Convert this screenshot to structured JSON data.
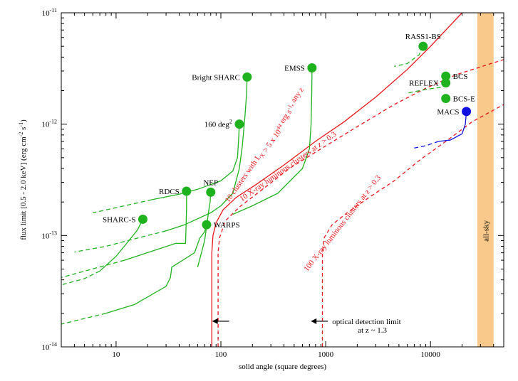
{
  "chart_data": {
    "type": "scatter",
    "xlabel": "solid angle (square degrees)",
    "ylabel": "flux limit [0.5 - 2.0 keV] (erg cm-2 s-1)",
    "ylabel_parts": {
      "pre": "flux limit [0.5 - 2.0 keV] (erg cm",
      "exp1": "-2",
      "mid": " s",
      "exp2": "-1",
      "post": ")"
    },
    "x_log": true,
    "y_log": true,
    "xlim": [
      3,
      50000
    ],
    "ylim": [
      1e-14,
      1e-11
    ],
    "x_ticks": [
      {
        "value": 10,
        "label": "10"
      },
      {
        "value": 100,
        "label": "100"
      },
      {
        "value": 1000,
        "label": "1000"
      },
      {
        "value": 10000,
        "label": "10000"
      }
    ],
    "y_ticks": [
      {
        "value": 1e-14,
        "base": "10",
        "exp": "-14"
      },
      {
        "value": 1e-13,
        "base": "10",
        "exp": "-13"
      },
      {
        "value": 1e-12,
        "base": "10",
        "exp": "-12"
      },
      {
        "value": 1e-11,
        "base": "10",
        "exp": "-11"
      }
    ],
    "colors": {
      "survey": "#1fb21f",
      "macs": "#1010e0",
      "limit": "#e8141b",
      "allsky": "#f9c98b"
    },
    "points": [
      {
        "name": "SHARC-S",
        "x": 18,
        "y": 1.4e-13,
        "label_pos": "left"
      },
      {
        "name": "RDCS",
        "x": 47,
        "y": 2.5e-13,
        "label_pos": "left"
      },
      {
        "name": "NEP",
        "x": 80,
        "y": 2.45e-13,
        "label_pos": "above"
      },
      {
        "name": "WARPS",
        "x": 73,
        "y": 1.25e-13,
        "label_pos": "right"
      },
      {
        "name": "160 deg",
        "superscript": "2",
        "x": 150,
        "y": 1e-12,
        "label_pos": "left"
      },
      {
        "name": "Bright SHARC",
        "x": 178,
        "y": 2.65e-12,
        "label_pos": "left"
      },
      {
        "name": "EMSS",
        "x": 740,
        "y": 3.2e-12,
        "label_pos": "left"
      },
      {
        "name": "RASS1-BS",
        "x": 8500,
        "y": 5e-12,
        "label_pos": "above"
      },
      {
        "name": "BCS",
        "x": 14000,
        "y": 2.7e-12,
        "label_pos": "right"
      },
      {
        "name": "REFLEX",
        "x": 14000,
        "y": 2.35e-12,
        "label_pos": "left"
      },
      {
        "name": "BCS-E",
        "x": 14000,
        "y": 1.7e-12,
        "label_pos": "right"
      },
      {
        "name": "MACS",
        "x": 22000,
        "y": 1.3e-12,
        "label_pos": "left",
        "color": "macs"
      }
    ],
    "survey_curves": [
      {
        "name": "SHARC-S",
        "solid": [
          [
            18,
            1.4e-13
          ],
          [
            16,
            1.12e-13
          ],
          [
            13,
            8.8e-14
          ],
          [
            10,
            6.5e-14
          ],
          [
            7,
            4.8e-14
          ]
        ],
        "dashed": [
          [
            7,
            4.8e-14
          ],
          [
            5,
            4.1e-14
          ],
          [
            3,
            3.6e-14
          ]
        ]
      },
      {
        "name": "RDCS",
        "solid": [
          [
            47,
            2.5e-13
          ],
          [
            47,
            1.75e-13
          ],
          [
            46.5,
            1.2e-13
          ],
          [
            46,
            8.5e-14
          ],
          [
            37,
            8.5e-14
          ],
          [
            12,
            6e-14
          ]
        ],
        "dashed": [
          [
            12,
            6e-14
          ],
          [
            3,
            4.2e-14
          ]
        ]
      },
      {
        "name": "NEP",
        "solid": [
          [
            80,
            2.45e-13
          ],
          [
            79,
            2e-13
          ],
          [
            76,
            1.6e-13
          ],
          [
            73,
            1.2e-13
          ],
          [
            70,
            9e-14
          ],
          [
            60,
            5.2e-14
          ]
        ],
        "dashed": []
      },
      {
        "name": "WARPS",
        "solid": [
          [
            73,
            1.25e-13
          ],
          [
            70,
            1.08e-13
          ],
          [
            63,
            9.5e-14
          ],
          [
            56,
            7e-14
          ],
          [
            34,
            5.2e-14
          ],
          [
            33,
            4.2e-14
          ],
          [
            30,
            3.5e-14
          ],
          [
            15,
            2.4e-14
          ],
          [
            8,
            2e-14
          ]
        ],
        "dashed": [
          [
            8,
            2e-14
          ],
          [
            3,
            1.6e-14
          ]
        ]
      },
      {
        "name": "160 deg2",
        "solid": [
          [
            150,
            1e-12
          ],
          [
            148,
            7.5e-13
          ],
          [
            144,
            5e-13
          ],
          [
            130,
            3.8e-13
          ],
          [
            100,
            3.1e-13
          ],
          [
            60,
            2.6e-13
          ],
          [
            40,
            2.35e-13
          ],
          [
            22,
            2.1e-13
          ]
        ],
        "dashed": [
          [
            22,
            2.1e-13
          ],
          [
            6,
            1.6e-13
          ]
        ]
      },
      {
        "name": "Bright SHARC",
        "solid": [
          [
            178,
            2.65e-12
          ],
          [
            176,
            1.9e-12
          ],
          [
            170,
            1.2e-12
          ],
          [
            160,
            6.3e-13
          ],
          [
            150,
            4e-13
          ],
          [
            130,
            2.4e-13
          ],
          [
            100,
            1.85e-13
          ],
          [
            80,
            1.6e-13
          ],
          [
            45,
            1.25e-13
          ],
          [
            30,
            1.1e-13
          ]
        ],
        "dashed": [
          [
            30,
            1.1e-13
          ],
          [
            20,
            1e-13
          ],
          [
            8,
            8e-14
          ],
          [
            4,
            7.1e-14
          ]
        ]
      },
      {
        "name": "EMSS",
        "solid": [
          [
            740,
            3.2e-12
          ],
          [
            737,
            2e-12
          ],
          [
            725,
            1e-12
          ],
          [
            700,
            6e-13
          ],
          [
            600,
            4e-13
          ],
          [
            350,
            2.4e-13
          ],
          [
            200,
            1.85e-13
          ],
          [
            130,
            1.55e-13
          ]
        ],
        "dashed": []
      },
      {
        "name": "RASS1-BS",
        "solid": [],
        "dashed": [
          [
            8500,
            5e-12
          ],
          [
            7800,
            4.2e-12
          ],
          [
            6000,
            3.5e-12
          ],
          [
            4500,
            3.3e-12
          ]
        ]
      },
      {
        "name": "REFLEX",
        "solid": [],
        "dashed": [
          [
            14000,
            2.35e-12
          ],
          [
            13000,
            2.15e-12
          ],
          [
            9000,
            2.05e-12
          ],
          [
            6000,
            1.9e-12
          ]
        ]
      },
      {
        "name": "MACS",
        "solid": [
          [
            22000,
            1.3e-12
          ],
          [
            21500,
            1e-12
          ],
          [
            20000,
            8.2e-13
          ],
          [
            15500,
            7.2e-13
          ],
          [
            12000,
            7e-13
          ]
        ],
        "dashed": [
          [
            12000,
            7e-13
          ],
          [
            9000,
            6.4e-13
          ],
          [
            7000,
            6.1e-13
          ]
        ],
        "color": "macs"
      }
    ],
    "limit_curves": [
      {
        "style": "solid",
        "points": [
          [
            82,
            1e-14
          ],
          [
            82,
            7e-14
          ],
          [
            84,
            1e-13
          ],
          [
            90,
            1.3e-13
          ],
          [
            105,
            1.7e-13
          ],
          [
            140,
            2.2e-13
          ],
          [
            220,
            2.9e-13
          ],
          [
            400,
            4.3e-13
          ],
          [
            800,
            7e-13
          ],
          [
            1500,
            1.05e-12
          ],
          [
            3000,
            1.75e-12
          ],
          [
            6000,
            3.1e-12
          ],
          [
            10000,
            5e-12
          ],
          [
            20000,
            1e-11
          ]
        ]
      },
      {
        "style": "dashed",
        "points": [
          [
            94,
            1e-14
          ],
          [
            94,
            7e-14
          ],
          [
            97,
            9.5e-14
          ],
          [
            110,
            1.35e-13
          ],
          [
            150,
            1.8e-13
          ],
          [
            250,
            2.6e-13
          ],
          [
            450,
            4e-13
          ],
          [
            900,
            6e-13
          ],
          [
            2000,
            9.5e-13
          ],
          [
            4500,
            1.5e-12
          ],
          [
            9000,
            2.1e-12
          ],
          [
            18000,
            2.8e-12
          ],
          [
            50000,
            3.8e-12
          ]
        ]
      },
      {
        "style": "dashed",
        "points": [
          [
            930,
            1e-14
          ],
          [
            930,
            7e-14
          ],
          [
            970,
            9.6e-14
          ],
          [
            1150,
            1.25e-13
          ],
          [
            1600,
            1.6e-13
          ],
          [
            2600,
            2.2e-13
          ],
          [
            4500,
            3.1e-13
          ],
          [
            8000,
            4.8e-13
          ],
          [
            14000,
            7e-13
          ],
          [
            25000,
            1.05e-12
          ],
          [
            50000,
            1.5e-12
          ]
        ]
      }
    ],
    "curve_labels": [
      {
        "x": 280,
        "y": 6.2e-13,
        "angle": -55,
        "parts": [
          {
            "t": "10 clusters with L"
          },
          {
            "t": "X",
            "sub": true
          },
          {
            "t": " > 5 x 10"
          },
          {
            "t": "44",
            "sup": true
          },
          {
            "t": " erg s"
          },
          {
            "t": "-1",
            "sup": true
          },
          {
            "t": ", any "
          },
          {
            "t": "z",
            "italic": true
          }
        ]
      },
      {
        "x": 450,
        "y": 4e-13,
        "angle": -35,
        "parts": [
          {
            "t": "10 X-ray luminous clusters at "
          },
          {
            "t": "z",
            "italic": true
          },
          {
            "t": " > 0.3"
          }
        ]
      },
      {
        "x": 1500,
        "y": 1.25e-13,
        "angle": -52,
        "parts": [
          {
            "t": "100 X-ray luminous clusters at "
          },
          {
            "t": "z",
            "italic": true
          },
          {
            "t": " > 0.3"
          }
        ]
      }
    ],
    "annotations": {
      "optical_limit": {
        "line1": "optical detection limit",
        "line2": "at z ~ 1.3"
      },
      "allsky_label": "all-sky",
      "allsky_band": [
        28000,
        40000
      ],
      "arrows_x": [
        120,
        1050
      ],
      "arrows_y": 1.7e-14
    },
    "grid": false
  }
}
